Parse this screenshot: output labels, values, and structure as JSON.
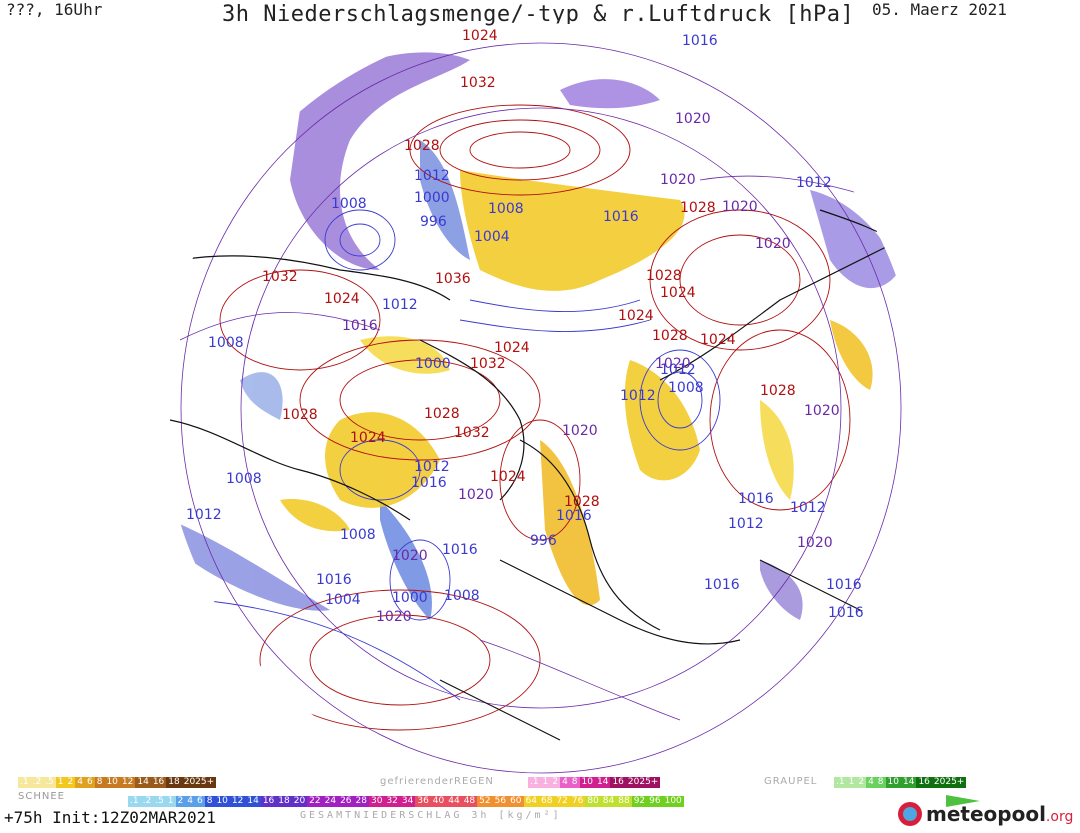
{
  "header": {
    "left": "???, 16Uhr",
    "title": "3h Niederschlagsmenge/-typ & r.Luftdruck [hPa]",
    "date": "05. Maerz 2021"
  },
  "map": {
    "projection": "polar-stereographic-north",
    "colors": {
      "high": "#b01010",
      "low": "#3a3ad0",
      "mid": "#6a2aa8",
      "snow": "#9a7ad8",
      "rain": "#f2c81e",
      "coast": "#111111"
    },
    "pressure_labels": [
      {
        "text": "1024",
        "kind": "high"
      },
      {
        "text": "1032",
        "kind": "high"
      },
      {
        "text": "1016",
        "kind": "low"
      },
      {
        "text": "1020",
        "kind": "mid"
      },
      {
        "text": "1028",
        "kind": "high"
      },
      {
        "text": "1012",
        "kind": "low"
      },
      {
        "text": "1008",
        "kind": "low"
      },
      {
        "text": "1000",
        "kind": "low"
      },
      {
        "text": "996",
        "kind": "low"
      },
      {
        "text": "1004",
        "kind": "low"
      },
      {
        "text": "1036",
        "kind": "high"
      },
      {
        "text": "1024",
        "kind": "high"
      },
      {
        "text": "1028",
        "kind": "high"
      },
      {
        "text": "1020",
        "kind": "mid"
      },
      {
        "text": "1020",
        "kind": "mid"
      },
      {
        "text": "1012",
        "kind": "low"
      },
      {
        "text": "1020",
        "kind": "mid"
      },
      {
        "text": "1024",
        "kind": "high"
      },
      {
        "text": "1028",
        "kind": "high"
      },
      {
        "text": "1008",
        "kind": "low"
      },
      {
        "text": "1016",
        "kind": "low"
      },
      {
        "text": "1032",
        "kind": "high"
      },
      {
        "text": "1024",
        "kind": "high"
      },
      {
        "text": "1016",
        "kind": "mid"
      },
      {
        "text": "1012",
        "kind": "low"
      },
      {
        "text": "1008",
        "kind": "low"
      },
      {
        "text": "1000",
        "kind": "low"
      },
      {
        "text": "1032",
        "kind": "high"
      },
      {
        "text": "1024",
        "kind": "high"
      },
      {
        "text": "1028",
        "kind": "high"
      },
      {
        "text": "1028",
        "kind": "high"
      },
      {
        "text": "1032",
        "kind": "high"
      },
      {
        "text": "1024",
        "kind": "high"
      },
      {
        "text": "1012",
        "kind": "low"
      },
      {
        "text": "1016",
        "kind": "low"
      },
      {
        "text": "1008",
        "kind": "low"
      },
      {
        "text": "1020",
        "kind": "mid"
      },
      {
        "text": "1020",
        "kind": "mid"
      },
      {
        "text": "1012",
        "kind": "low"
      },
      {
        "text": "1008",
        "kind": "low"
      },
      {
        "text": "1024",
        "kind": "high"
      },
      {
        "text": "1020",
        "kind": "mid"
      },
      {
        "text": "1028",
        "kind": "high"
      },
      {
        "text": "1024",
        "kind": "high"
      },
      {
        "text": "1028",
        "kind": "high"
      },
      {
        "text": "1020",
        "kind": "mid"
      },
      {
        "text": "1016",
        "kind": "low"
      },
      {
        "text": "1012",
        "kind": "low"
      },
      {
        "text": "1012",
        "kind": "low"
      },
      {
        "text": "1020",
        "kind": "mid"
      },
      {
        "text": "1016",
        "kind": "low"
      },
      {
        "text": "1016",
        "kind": "low"
      },
      {
        "text": "1016",
        "kind": "low"
      },
      {
        "text": "1012",
        "kind": "low"
      },
      {
        "text": "1028",
        "kind": "high"
      },
      {
        "text": "1016",
        "kind": "low"
      },
      {
        "text": "996",
        "kind": "low"
      },
      {
        "text": "1008",
        "kind": "low"
      },
      {
        "text": "1012",
        "kind": "low"
      },
      {
        "text": "1016",
        "kind": "low"
      },
      {
        "text": "1004",
        "kind": "low"
      },
      {
        "text": "1000",
        "kind": "low"
      },
      {
        "text": "1020",
        "kind": "mid"
      },
      {
        "text": "1016",
        "kind": "low"
      },
      {
        "text": "1020",
        "kind": "mid"
      },
      {
        "text": "1008",
        "kind": "low"
      }
    ]
  },
  "legend": {
    "schnee_label": "SCHNEE",
    "schnee_scale": [
      ".1",
      ".2",
      ".5",
      "1",
      "2",
      "4",
      "6",
      "8",
      "10",
      "12",
      "14",
      "16",
      "18",
      "2025+"
    ],
    "regen_label": "gefrierenderREGEN",
    "regen_scale": [
      ".1",
      "1",
      "2",
      "4",
      "8",
      "10",
      "14",
      "16",
      "2025+"
    ],
    "graupel_label": "GRAUPEL",
    "graupel_scale": [
      ".1",
      "1",
      "2",
      "4",
      "8",
      "10",
      "14",
      "16",
      "2025+"
    ],
    "gesamt_scale": [
      ".1",
      ".2",
      ".5",
      "1",
      "2",
      "4",
      "6",
      "8",
      "10",
      "12",
      "14",
      "16",
      "18",
      "20",
      "22",
      "24",
      "26",
      "28",
      "30",
      "32",
      "34",
      "36",
      "40",
      "44",
      "48",
      "52",
      "56",
      "60",
      "64",
      "68",
      "72",
      "76",
      "80",
      "84",
      "88",
      "92",
      "96",
      "100"
    ],
    "colors": {
      "schnee": [
        "#f7e79a",
        "#f2c81e",
        "#e0a020",
        "#c87a20",
        "#9a5a1c",
        "#6a3810"
      ],
      "regen": [
        "#f7b0e0",
        "#e860c8",
        "#d02090",
        "#a01060"
      ],
      "graupel": [
        "#b0e8a0",
        "#6ad060",
        "#30a030",
        "#107010"
      ],
      "gesamt": [
        "#9ad8f0",
        "#5aa0e8",
        "#3050d8",
        "#6030c8",
        "#a020c0",
        "#d02090",
        "#e85060",
        "#f09030",
        "#f0d020",
        "#c0e030",
        "#70d020"
      ]
    }
  },
  "footer": {
    "init": "+75h  Init:12Z02MAR2021",
    "total": "GESAMTNIEDERSCHLAG 3h [kg/m²]"
  },
  "brand": {
    "name": "meteopool",
    "tld": ".org"
  }
}
